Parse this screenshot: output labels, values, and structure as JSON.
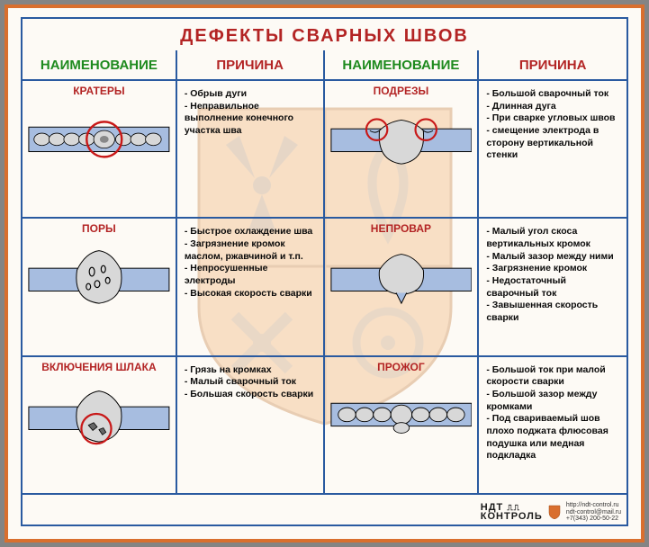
{
  "title": "ДЕФЕКТЫ СВАРНЫХ ШВОВ",
  "headers": {
    "col1": "НАИМЕНОВАНИЕ",
    "col2": "ПРИЧИНА",
    "col3": "НАИМЕНОВАНИЕ",
    "col4": "ПРИЧИНА"
  },
  "colors": {
    "frame_orange": "#d96f2e",
    "border_blue": "#2a5aa0",
    "title_red": "#b32424",
    "header_green": "#1e8a1e",
    "header_red": "#b32424",
    "plate_blue": "#a7bde0",
    "weld_fill": "#d8d8d8",
    "circle_red": "#c81818",
    "shield_orange": "#efae6f",
    "shield_symbol": "#8a8076"
  },
  "defects": [
    {
      "name": "КРАТЕРЫ",
      "causes": [
        "Обрыв дуги",
        "Неправильное выполнение конечного участка шва"
      ]
    },
    {
      "name": "ПОДРЕЗЫ",
      "causes": [
        "Большой сварочный ток",
        "Длинная дуга",
        "При сварке угловых швов - смещение электрода в сторону вертикальной стенки"
      ]
    },
    {
      "name": "ПОРЫ",
      "causes": [
        "Быстрое охлаждение шва",
        "Загрязнение кромок маслом, ржавчиной и т.п.",
        "Непросушенные электроды",
        "Высокая скорость сварки"
      ]
    },
    {
      "name": "НЕПРОВАР",
      "causes": [
        "Малый угол скоса вертикальных кромок",
        "Малый зазор между ними",
        "Загрязнение кромок",
        "Недостаточный сварочный ток",
        "Завышенная скорость сварки"
      ]
    },
    {
      "name": "ВКЛЮЧЕНИЯ ШЛАКА",
      "causes": [
        "Грязь на кромках",
        "Малый сварочный ток",
        "Большая скорость сварки"
      ]
    },
    {
      "name": "ПРОЖОГ",
      "causes": [
        "Большой ток при малой скорости сварки",
        "Большой зазор между кромками",
        "Под свариваемый шов плохо поджата флюсовая подушка или медная подкладка"
      ]
    }
  ],
  "footer": {
    "brand_line1": "НДТ",
    "brand_line2": "КОНТРОЛЬ",
    "url": "http://ndt-control.ru",
    "email": "ndt-control@mail.ru",
    "phone": "+7(343) 200-50-22"
  }
}
